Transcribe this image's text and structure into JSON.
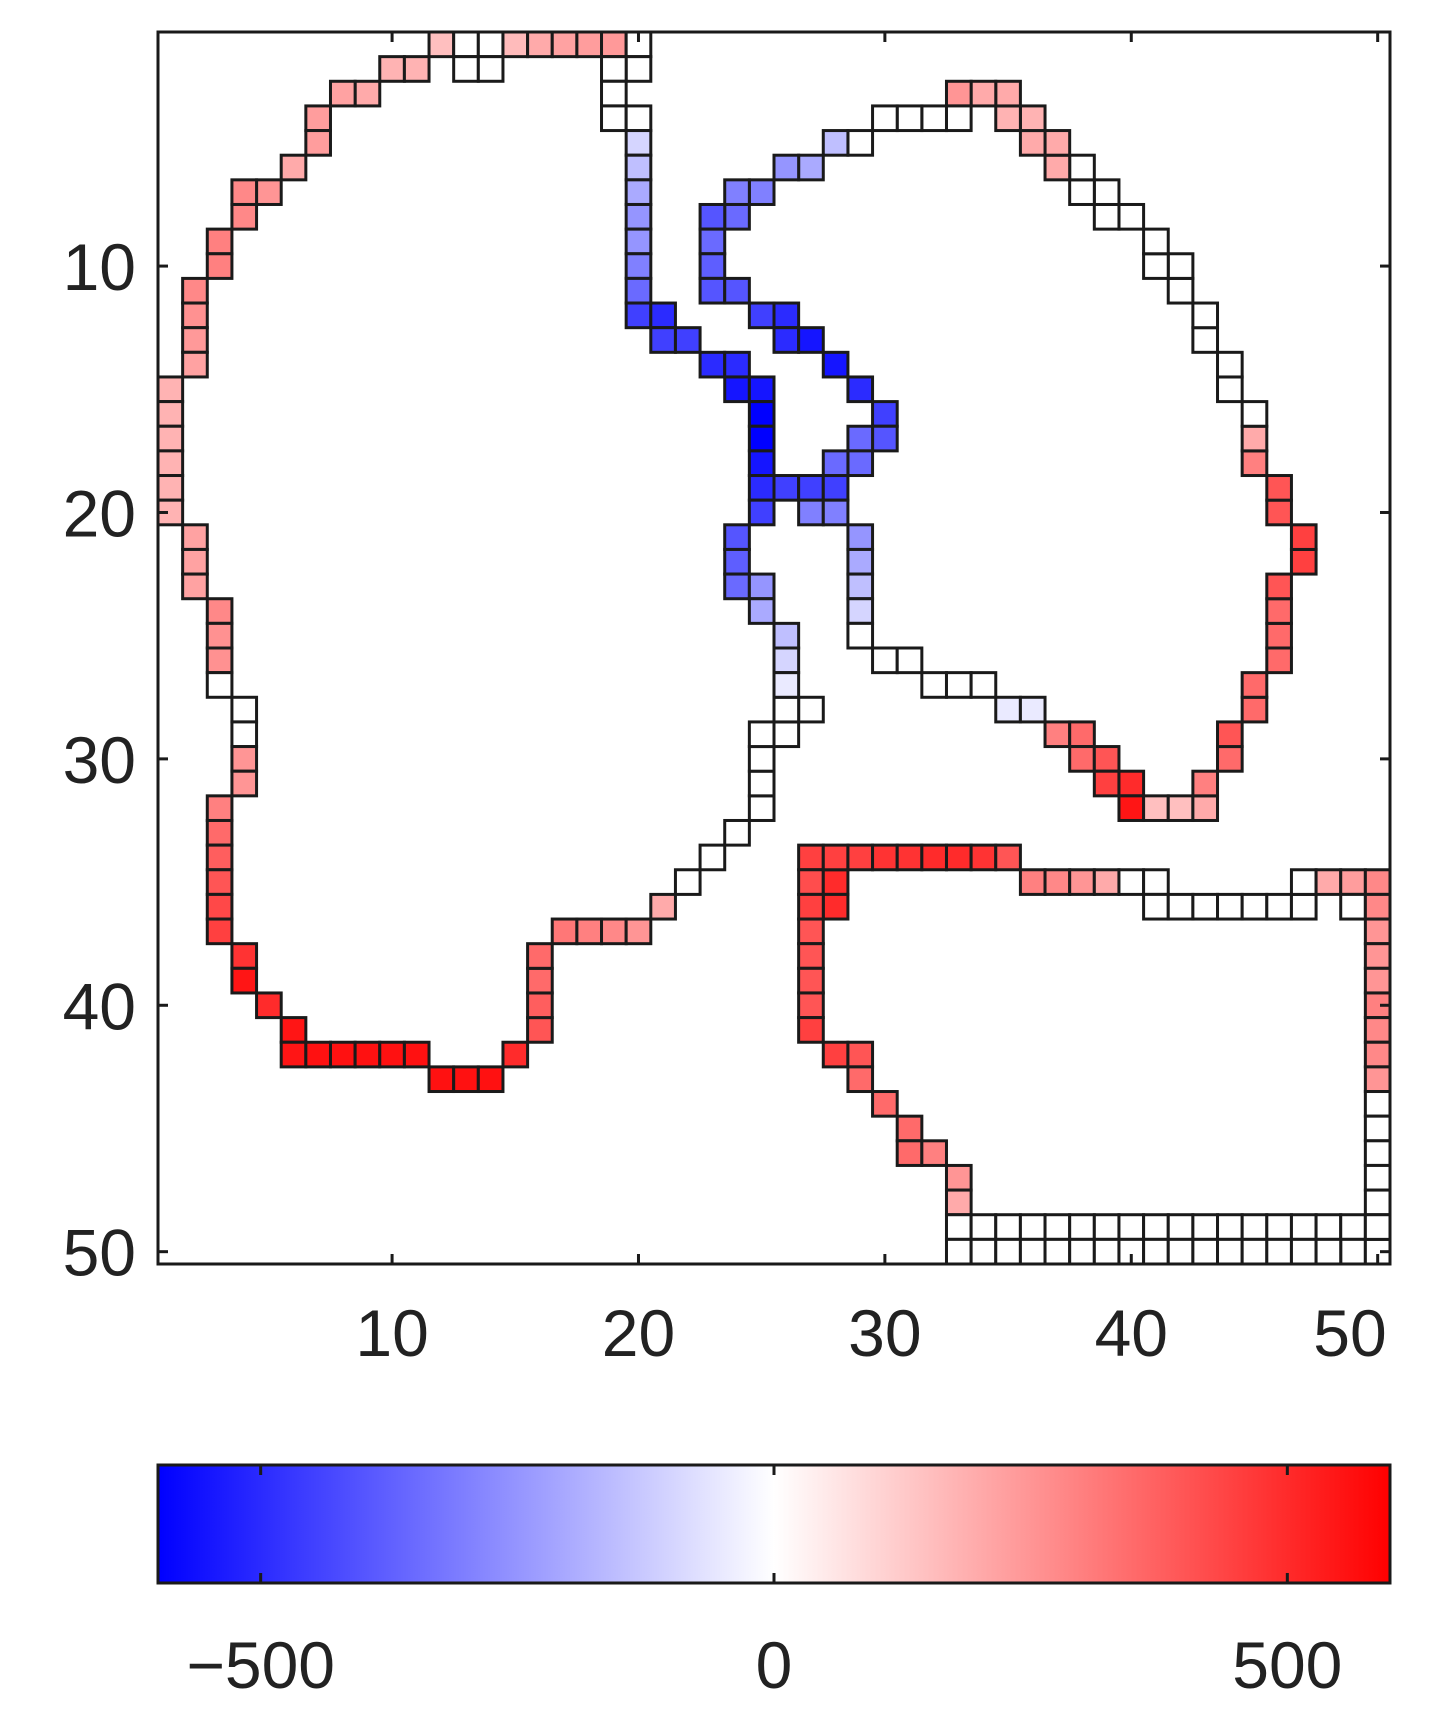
{
  "chart_data": {
    "type": "heatmap",
    "title": "",
    "xlabel": "",
    "ylabel": "",
    "xlim": [
      0.5,
      50.5
    ],
    "ylim": [
      0.5,
      50.5
    ],
    "y_reversed": true,
    "x_ticks": [
      10,
      20,
      30,
      40,
      50
    ],
    "x_tick_labels": [
      "10",
      "20",
      "30",
      "40",
      "50"
    ],
    "y_ticks": [
      10,
      20,
      30,
      40,
      50
    ],
    "y_tick_labels": [
      "10",
      "20",
      "30",
      "40",
      "50"
    ],
    "grid": false,
    "legend": "none",
    "colorbar": {
      "position": "bottom",
      "range": [
        -600,
        600
      ],
      "ticks": [
        -500,
        0,
        500
      ],
      "tick_labels": [
        "−500",
        "0",
        "500"
      ],
      "colormap": [
        "#0000ff",
        "#ffffff",
        "#ff0000"
      ]
    },
    "cells_note_x_y_value": "each cell is [column, row, value]",
    "cells": [
      [
        12,
        1,
        150
      ],
      [
        13,
        1,
        0
      ],
      [
        14,
        1,
        0
      ],
      [
        15,
        1,
        160
      ],
      [
        16,
        1,
        200
      ],
      [
        17,
        1,
        220
      ],
      [
        18,
        1,
        230
      ],
      [
        19,
        1,
        240
      ],
      [
        20,
        1,
        0
      ],
      [
        13,
        2,
        0
      ],
      [
        14,
        2,
        0
      ],
      [
        20,
        2,
        0
      ],
      [
        10,
        2,
        180
      ],
      [
        11,
        2,
        180
      ],
      [
        9,
        3,
        200
      ],
      [
        8,
        3,
        220
      ],
      [
        7,
        4,
        230
      ],
      [
        7,
        5,
        230
      ],
      [
        6,
        6,
        200
      ],
      [
        5,
        7,
        250
      ],
      [
        4,
        7,
        280
      ],
      [
        4,
        8,
        280
      ],
      [
        3,
        9,
        300
      ],
      [
        3,
        10,
        300
      ],
      [
        2,
        11,
        280
      ],
      [
        2,
        12,
        260
      ],
      [
        2,
        13,
        240
      ],
      [
        2,
        14,
        220
      ],
      [
        1,
        15,
        180
      ],
      [
        1,
        16,
        180
      ],
      [
        1,
        17,
        180
      ],
      [
        1,
        18,
        180
      ],
      [
        1,
        19,
        180
      ],
      [
        1,
        20,
        180
      ],
      [
        2,
        21,
        220
      ],
      [
        2,
        22,
        220
      ],
      [
        2,
        23,
        220
      ],
      [
        3,
        24,
        280
      ],
      [
        3,
        25,
        260
      ],
      [
        3,
        26,
        260
      ],
      [
        3,
        27,
        0
      ],
      [
        4,
        28,
        0
      ],
      [
        4,
        29,
        0
      ],
      [
        4,
        30,
        250
      ],
      [
        4,
        31,
        250
      ],
      [
        3,
        32,
        300
      ],
      [
        3,
        33,
        350
      ],
      [
        3,
        34,
        380
      ],
      [
        3,
        35,
        400
      ],
      [
        3,
        36,
        430
      ],
      [
        3,
        37,
        450
      ],
      [
        4,
        38,
        480
      ],
      [
        4,
        39,
        550
      ],
      [
        5,
        40,
        500
      ],
      [
        6,
        41,
        550
      ],
      [
        6,
        42,
        550
      ],
      [
        7,
        42,
        560
      ],
      [
        8,
        42,
        560
      ],
      [
        9,
        42,
        560
      ],
      [
        10,
        42,
        560
      ],
      [
        11,
        42,
        560
      ],
      [
        12,
        43,
        560
      ],
      [
        13,
        43,
        560
      ],
      [
        14,
        43,
        560
      ],
      [
        15,
        42,
        500
      ],
      [
        16,
        41,
        400
      ],
      [
        16,
        40,
        380
      ],
      [
        16,
        39,
        350
      ],
      [
        16,
        38,
        350
      ],
      [
        17,
        37,
        320
      ],
      [
        18,
        37,
        300
      ],
      [
        19,
        37,
        280
      ],
      [
        20,
        37,
        250
      ],
      [
        21,
        36,
        200
      ],
      [
        22,
        35,
        0
      ],
      [
        23,
        34,
        0
      ],
      [
        24,
        33,
        0
      ],
      [
        25,
        32,
        0
      ],
      [
        25,
        31,
        0
      ],
      [
        25,
        30,
        0
      ],
      [
        25,
        29,
        0
      ],
      [
        26,
        29,
        0
      ],
      [
        27,
        28,
        0
      ],
      [
        26,
        28,
        0
      ],
      [
        19,
        2,
        0
      ],
      [
        19,
        3,
        0
      ],
      [
        19,
        4,
        0
      ],
      [
        20,
        4,
        0
      ],
      [
        20,
        5,
        -100
      ],
      [
        20,
        6,
        -150
      ],
      [
        20,
        7,
        -200
      ],
      [
        20,
        8,
        -250
      ],
      [
        20,
        9,
        -250
      ],
      [
        20,
        10,
        -300
      ],
      [
        20,
        11,
        -350
      ],
      [
        20,
        12,
        -450
      ],
      [
        21,
        12,
        -500
      ],
      [
        21,
        13,
        -450
      ],
      [
        22,
        13,
        -450
      ],
      [
        23,
        14,
        -500
      ],
      [
        24,
        14,
        -500
      ],
      [
        24,
        15,
        -550
      ],
      [
        25,
        15,
        -550
      ],
      [
        25,
        16,
        -600
      ],
      [
        25,
        17,
        -600
      ],
      [
        25,
        18,
        -550
      ],
      [
        25,
        19,
        -500
      ],
      [
        25,
        20,
        -450
      ],
      [
        24,
        21,
        -400
      ],
      [
        24,
        22,
        -380
      ],
      [
        24,
        23,
        -350
      ],
      [
        25,
        23,
        -250
      ],
      [
        25,
        24,
        -200
      ],
      [
        26,
        25,
        -150
      ],
      [
        26,
        26,
        -100
      ],
      [
        26,
        27,
        -50
      ],
      [
        26,
        19,
        -450
      ],
      [
        27,
        19,
        -450
      ],
      [
        28,
        19,
        -450
      ],
      [
        27,
        20,
        -300
      ],
      [
        28,
        20,
        -300
      ],
      [
        29,
        21,
        -250
      ],
      [
        29,
        22,
        -200
      ],
      [
        29,
        23,
        -150
      ],
      [
        29,
        24,
        -100
      ],
      [
        29,
        25,
        0
      ],
      [
        30,
        26,
        0
      ],
      [
        31,
        26,
        0
      ],
      [
        32,
        27,
        0
      ],
      [
        33,
        27,
        0
      ],
      [
        34,
        27,
        0
      ],
      [
        35,
        28,
        -50
      ],
      [
        36,
        28,
        -50
      ],
      [
        37,
        29,
        300
      ],
      [
        38,
        29,
        350
      ],
      [
        38,
        30,
        350
      ],
      [
        39,
        30,
        400
      ],
      [
        39,
        31,
        450
      ],
      [
        40,
        31,
        500
      ],
      [
        40,
        32,
        550
      ],
      [
        41,
        32,
        150
      ],
      [
        42,
        32,
        150
      ],
      [
        43,
        32,
        200
      ],
      [
        43,
        31,
        300
      ],
      [
        44,
        30,
        350
      ],
      [
        44,
        29,
        400
      ],
      [
        45,
        28,
        350
      ],
      [
        45,
        27,
        350
      ],
      [
        46,
        26,
        350
      ],
      [
        46,
        25,
        350
      ],
      [
        46,
        24,
        350
      ],
      [
        46,
        23,
        400
      ],
      [
        47,
        22,
        450
      ],
      [
        47,
        21,
        450
      ],
      [
        46,
        20,
        400
      ],
      [
        46,
        19,
        400
      ],
      [
        45,
        18,
        300
      ],
      [
        45,
        17,
        200
      ],
      [
        45,
        16,
        0
      ],
      [
        44,
        15,
        0
      ],
      [
        44,
        14,
        0
      ],
      [
        43,
        13,
        0
      ],
      [
        43,
        12,
        0
      ],
      [
        42,
        11,
        0
      ],
      [
        42,
        10,
        0
      ],
      [
        41,
        10,
        0
      ],
      [
        41,
        9,
        0
      ],
      [
        40,
        8,
        0
      ],
      [
        39,
        8,
        0
      ],
      [
        39,
        7,
        0
      ],
      [
        38,
        7,
        0
      ],
      [
        38,
        6,
        0
      ],
      [
        37,
        6,
        200
      ],
      [
        37,
        5,
        200
      ],
      [
        36,
        5,
        200
      ],
      [
        36,
        4,
        180
      ],
      [
        35,
        4,
        180
      ],
      [
        35,
        3,
        200
      ],
      [
        34,
        3,
        200
      ],
      [
        33,
        3,
        250
      ],
      [
        33,
        4,
        0
      ],
      [
        32,
        4,
        0
      ],
      [
        31,
        4,
        0
      ],
      [
        30,
        4,
        0
      ],
      [
        29,
        5,
        0
      ],
      [
        28,
        5,
        -150
      ],
      [
        27,
        6,
        -200
      ],
      [
        26,
        6,
        -250
      ],
      [
        25,
        7,
        -300
      ],
      [
        24,
        7,
        -300
      ],
      [
        24,
        8,
        -350
      ],
      [
        23,
        8,
        -400
      ],
      [
        23,
        9,
        -350
      ],
      [
        23,
        10,
        -380
      ],
      [
        23,
        11,
        -400
      ],
      [
        24,
        11,
        -400
      ],
      [
        25,
        12,
        -450
      ],
      [
        26,
        12,
        -500
      ],
      [
        26,
        13,
        -500
      ],
      [
        27,
        13,
        -550
      ],
      [
        28,
        14,
        -550
      ],
      [
        29,
        15,
        -500
      ],
      [
        30,
        16,
        -450
      ],
      [
        30,
        17,
        -400
      ],
      [
        29,
        17,
        -350
      ],
      [
        29,
        18,
        -350
      ],
      [
        28,
        18,
        -350
      ],
      [
        27,
        34,
        450
      ],
      [
        27,
        35,
        420
      ],
      [
        28,
        35,
        500
      ],
      [
        28,
        36,
        500
      ],
      [
        27,
        36,
        450
      ],
      [
        27,
        37,
        400
      ],
      [
        27,
        38,
        400
      ],
      [
        27,
        39,
        400
      ],
      [
        27,
        40,
        400
      ],
      [
        27,
        41,
        450
      ],
      [
        28,
        42,
        450
      ],
      [
        29,
        42,
        400
      ],
      [
        29,
        43,
        350
      ],
      [
        30,
        44,
        350
      ],
      [
        31,
        45,
        350
      ],
      [
        31,
        46,
        350
      ],
      [
        32,
        46,
        300
      ],
      [
        33,
        47,
        250
      ],
      [
        33,
        48,
        200
      ],
      [
        33,
        49,
        0
      ],
      [
        33,
        50,
        0
      ],
      [
        34,
        49,
        0
      ],
      [
        35,
        49,
        0
      ],
      [
        36,
        49,
        0
      ],
      [
        37,
        49,
        0
      ],
      [
        38,
        49,
        0
      ],
      [
        39,
        49,
        0
      ],
      [
        40,
        49,
        0
      ],
      [
        41,
        49,
        0
      ],
      [
        42,
        49,
        0
      ],
      [
        43,
        49,
        0
      ],
      [
        44,
        49,
        0
      ],
      [
        45,
        49,
        0
      ],
      [
        46,
        49,
        0
      ],
      [
        47,
        49,
        0
      ],
      [
        48,
        49,
        0
      ],
      [
        49,
        49,
        0
      ],
      [
        49,
        50,
        0
      ],
      [
        50,
        50,
        0
      ],
      [
        34,
        50,
        0
      ],
      [
        35,
        50,
        0
      ],
      [
        36,
        50,
        0
      ],
      [
        37,
        50,
        0
      ],
      [
        38,
        50,
        0
      ],
      [
        39,
        50,
        0
      ],
      [
        40,
        50,
        0
      ],
      [
        41,
        50,
        0
      ],
      [
        42,
        50,
        0
      ],
      [
        43,
        50,
        0
      ],
      [
        44,
        50,
        0
      ],
      [
        45,
        50,
        0
      ],
      [
        46,
        50,
        0
      ],
      [
        47,
        50,
        0
      ],
      [
        48,
        50,
        0
      ],
      [
        28,
        34,
        450
      ],
      [
        29,
        34,
        450
      ],
      [
        30,
        34,
        480
      ],
      [
        31,
        34,
        480
      ],
      [
        32,
        34,
        500
      ],
      [
        33,
        34,
        500
      ],
      [
        34,
        34,
        480
      ],
      [
        35,
        34,
        400
      ],
      [
        36,
        35,
        300
      ],
      [
        37,
        35,
        280
      ],
      [
        38,
        35,
        250
      ],
      [
        39,
        35,
        200
      ],
      [
        40,
        35,
        0
      ],
      [
        41,
        35,
        0
      ],
      [
        41,
        36,
        0
      ],
      [
        42,
        36,
        0
      ],
      [
        43,
        36,
        0
      ],
      [
        44,
        36,
        0
      ],
      [
        45,
        36,
        0
      ],
      [
        46,
        36,
        0
      ],
      [
        47,
        36,
        0
      ],
      [
        47,
        35,
        0
      ],
      [
        48,
        35,
        200
      ],
      [
        49,
        35,
        230
      ],
      [
        50,
        35,
        280
      ],
      [
        49,
        36,
        0
      ],
      [
        50,
        36,
        280
      ],
      [
        50,
        37,
        250
      ],
      [
        50,
        38,
        250
      ],
      [
        50,
        39,
        250
      ],
      [
        50,
        40,
        300
      ],
      [
        50,
        41,
        280
      ],
      [
        50,
        42,
        280
      ],
      [
        50,
        43,
        250
      ],
      [
        50,
        44,
        0
      ],
      [
        50,
        45,
        0
      ],
      [
        50,
        46,
        0
      ],
      [
        50,
        47,
        0
      ],
      [
        50,
        48,
        0
      ],
      [
        50,
        49,
        0
      ]
    ]
  }
}
